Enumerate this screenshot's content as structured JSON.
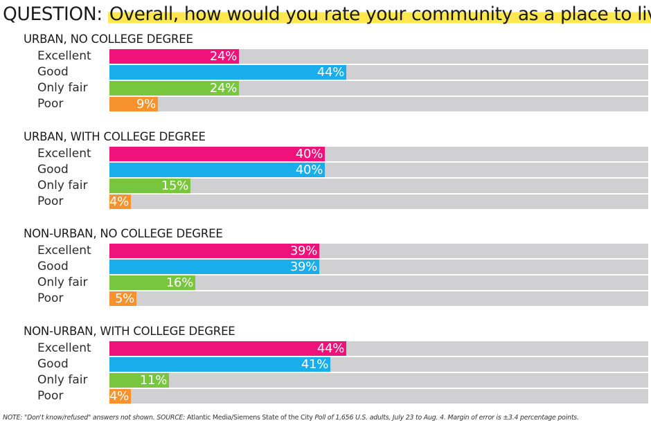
{
  "header": {
    "question_label": "QUESTION:",
    "question_text": "Overall, how would you rate your community as a place to live?"
  },
  "colors": {
    "Excellent": "#f0127b",
    "Good": "#1aadeb",
    "Only fair": "#78c63e",
    "Poor": "#f7922e",
    "track": "#d0d0d2",
    "highlight": "#ffe74f"
  },
  "chart_data": {
    "type": "bar",
    "orientation": "horizontal",
    "xlim": [
      0,
      100
    ],
    "value_suffix": "%",
    "categories": [
      "Excellent",
      "Good",
      "Only fair",
      "Poor"
    ],
    "groups": [
      {
        "title": "URBAN,  NO COLLEGE DEGREE",
        "values": [
          24,
          44,
          24,
          9
        ]
      },
      {
        "title": "URBAN, WITH COLLEGE DEGREE",
        "values": [
          40,
          40,
          15,
          4
        ]
      },
      {
        "title": "NON-URBAN,  NO COLLEGE DEGREE",
        "values": [
          39,
          39,
          16,
          5
        ]
      },
      {
        "title": "NON-URBAN, WITH COLLEGE DEGREE",
        "values": [
          44,
          41,
          11,
          4
        ]
      }
    ]
  },
  "footer": {
    "note_part1": "NOTE: \"Don't know/refused\" answers not shown. SOURCE: ",
    "source_name": "Atlantic Media/Siemens State of the City",
    "note_part2": " Poll of 1,656 U.S. adults, July 23 to Aug. 4. Margin of error is ±3.4 percentage points."
  }
}
